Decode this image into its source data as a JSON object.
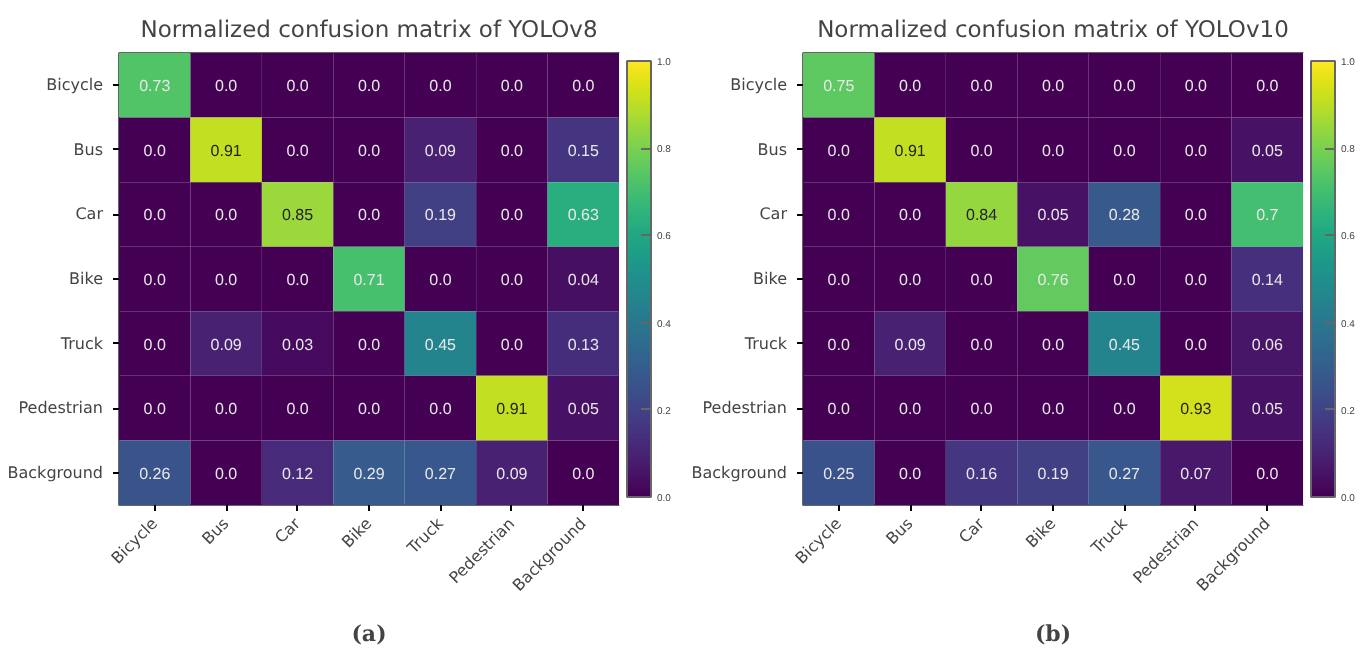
{
  "chart_data": [
    {
      "type": "heatmap",
      "title": "Normalized confusion matrix of YOLOv8",
      "categories": [
        "Bicycle",
        "Bus",
        "Car",
        "Bike",
        "Truck",
        "Pedestrian",
        "Background"
      ],
      "y_categories": [
        "Bicycle",
        "Bus",
        "Car",
        "Bike",
        "Truck",
        "Pedestrian",
        "Background"
      ],
      "cells": [
        [
          0.73,
          0,
          0,
          0,
          0,
          0,
          0
        ],
        [
          0,
          0.91,
          0,
          0,
          0.09,
          0,
          0.15
        ],
        [
          0,
          0,
          0.85,
          0,
          0.19,
          0,
          0.63
        ],
        [
          0,
          0,
          0,
          0.71,
          0,
          0,
          0.04
        ],
        [
          0,
          0.09,
          0.03,
          0,
          0.45,
          0,
          0.13
        ],
        [
          0,
          0,
          0,
          0,
          0,
          0.91,
          0.05
        ],
        [
          0.26,
          0,
          0.12,
          0.29,
          0.27,
          0.09,
          0
        ]
      ],
      "cell_labels": [
        [
          "0.73",
          "0.0",
          "0.0",
          "0.0",
          "0.0",
          "0.0",
          "0.0"
        ],
        [
          "0.0",
          "0.91",
          "0.0",
          "0.0",
          "0.09",
          "0.0",
          "0.15"
        ],
        [
          "0.0",
          "0.0",
          "0.85",
          "0.0",
          "0.19",
          "0.0",
          "0.63"
        ],
        [
          "0.0",
          "0.0",
          "0.0",
          "0.71",
          "0.0",
          "0.0",
          "0.04"
        ],
        [
          "0.0",
          "0.09",
          "0.03",
          "0.0",
          "0.45",
          "0.0",
          "0.13"
        ],
        [
          "0.0",
          "0.0",
          "0.0",
          "0.0",
          "0.0",
          "0.91",
          "0.05"
        ],
        [
          "0.26",
          "0.0",
          "0.12",
          "0.29",
          "0.27",
          "0.09",
          "0.0"
        ]
      ],
      "clim": [
        0,
        1
      ],
      "cticks": [
        {
          "value": 0,
          "label": "0.0"
        },
        {
          "value": 0.2,
          "label": "0.2"
        },
        {
          "value": 0.4,
          "label": "0.4"
        },
        {
          "value": 0.6,
          "label": "0.6"
        },
        {
          "value": 0.8,
          "label": "0.8"
        },
        {
          "value": 1,
          "label": "1.0"
        }
      ],
      "annotations": [
        "(a)"
      ]
    },
    {
      "type": "heatmap",
      "title": "Normalized confusion matrix of YOLOv10",
      "categories": [
        "Bicycle",
        "Bus",
        "Car",
        "Bike",
        "Truck",
        "Pedestrian",
        "Background"
      ],
      "y_categories": [
        "Bicycle",
        "Bus",
        "Car",
        "Bike",
        "Truck",
        "Pedestrian",
        "Background"
      ],
      "cells": [
        [
          0.75,
          0,
          0,
          0,
          0,
          0,
          0
        ],
        [
          0,
          0.91,
          0,
          0,
          0,
          0,
          0.05
        ],
        [
          0,
          0,
          0.84,
          0.05,
          0.28,
          0,
          0.7
        ],
        [
          0,
          0,
          0,
          0.76,
          0,
          0,
          0.14
        ],
        [
          0,
          0.09,
          0,
          0,
          0.45,
          0,
          0.06
        ],
        [
          0,
          0,
          0,
          0,
          0,
          0.93,
          0.05
        ],
        [
          0.25,
          0,
          0.16,
          0.19,
          0.27,
          0.07,
          0
        ]
      ],
      "cell_labels": [
        [
          "0.75",
          "0.0",
          "0.0",
          "0.0",
          "0.0",
          "0.0",
          "0.0"
        ],
        [
          "0.0",
          "0.91",
          "0.0",
          "0.0",
          "0.0",
          "0.0",
          "0.05"
        ],
        [
          "0.0",
          "0.0",
          "0.84",
          "0.05",
          "0.28",
          "0.0",
          "0.7"
        ],
        [
          "0.0",
          "0.0",
          "0.0",
          "0.76",
          "0.0",
          "0.0",
          "0.14"
        ],
        [
          "0.0",
          "0.09",
          "0.0",
          "0.0",
          "0.45",
          "0.0",
          "0.06"
        ],
        [
          "0.0",
          "0.0",
          "0.0",
          "0.0",
          "0.0",
          "0.93",
          "0.05"
        ],
        [
          "0.25",
          "0.0",
          "0.16",
          "0.19",
          "0.27",
          "0.07",
          "0.0"
        ]
      ],
      "clim": [
        0,
        1
      ],
      "cticks": [
        {
          "value": 0,
          "label": "0.0"
        },
        {
          "value": 0.2,
          "label": "0.2"
        },
        {
          "value": 0.4,
          "label": "0.4"
        },
        {
          "value": 0.6,
          "label": "0.6"
        },
        {
          "value": 0.8,
          "label": "0.8"
        },
        {
          "value": 1,
          "label": "1.0"
        }
      ],
      "annotations": [
        "(b)"
      ]
    }
  ]
}
